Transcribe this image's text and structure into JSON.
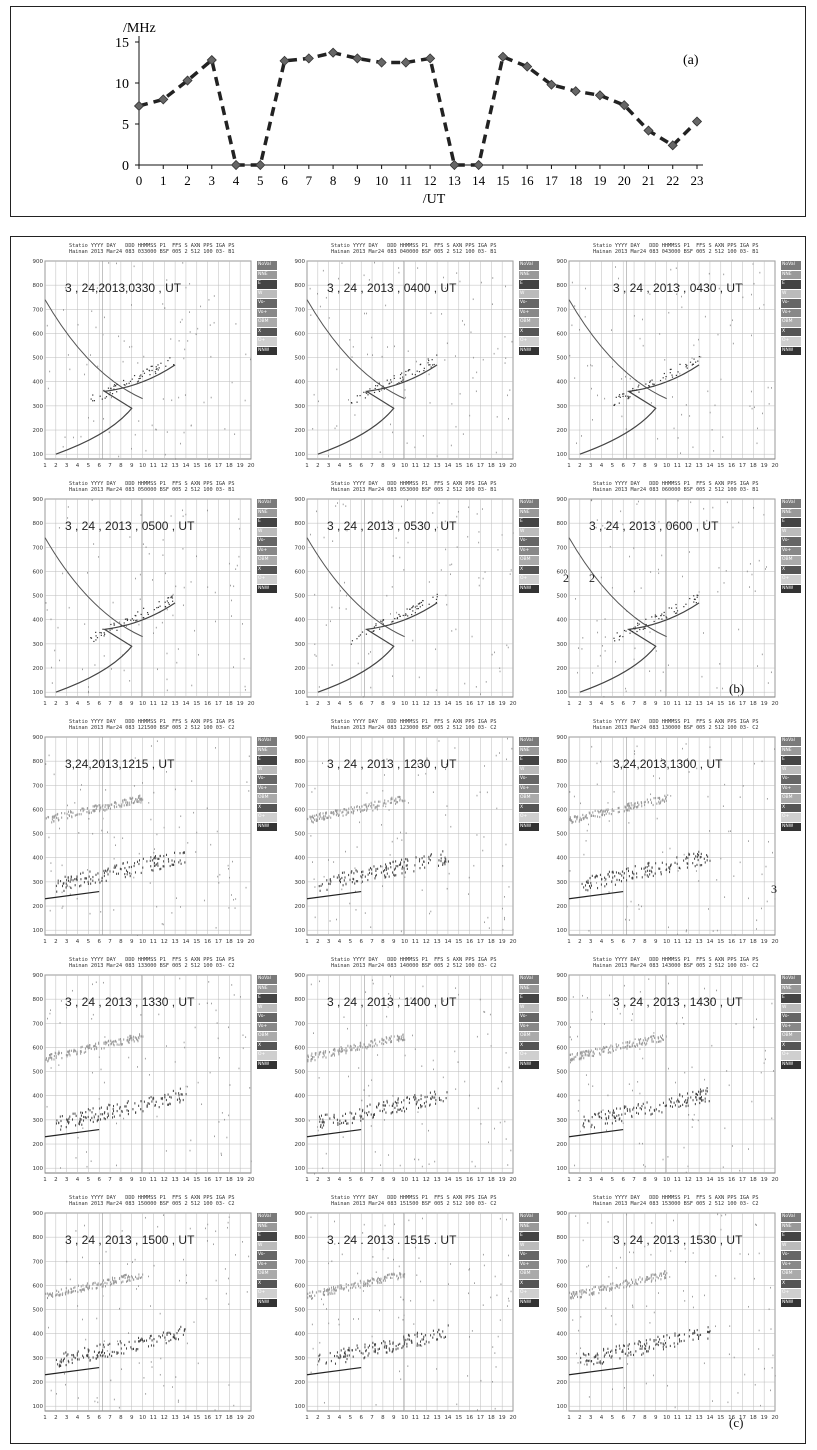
{
  "chart_data": [
    {
      "type": "line",
      "panel_label": "(a)",
      "ylabel": "/MHz",
      "xlabel": "/UT",
      "ylim": [
        0,
        15
      ],
      "xlim": [
        0,
        23
      ],
      "x": [
        0,
        1,
        2,
        3,
        4,
        5,
        6,
        7,
        8,
        9,
        10,
        11,
        12,
        13,
        14,
        15,
        16,
        17,
        18,
        19,
        20,
        21,
        22,
        23
      ],
      "yticks": [
        "0",
        "5",
        "10",
        "15"
      ],
      "xticks": [
        "0",
        "1",
        "2",
        "3",
        "4",
        "5",
        "6",
        "7",
        "8",
        "9",
        "10",
        "11",
        "12",
        "13",
        "14",
        "15",
        "16",
        "17",
        "18",
        "19",
        "20",
        "21",
        "22",
        "23"
      ],
      "series": [
        {
          "values": [
            7.2,
            8.0,
            10.3,
            12.8,
            0,
            0,
            12.7,
            13.0,
            13.7,
            13.0,
            12.5,
            12.5,
            13.0,
            0,
            0,
            13.2,
            12.0,
            9.8,
            9.0,
            8.5,
            7.3,
            4.2,
            2.4,
            5.3
          ]
        }
      ],
      "line_style": "dashed",
      "marker": "diamond",
      "grid": false
    },
    {
      "type": "scatter",
      "panel_labels": [
        "(b)",
        "(c)"
      ],
      "description_note": "",
      "yticks": [
        "100",
        "200",
        "300",
        "400",
        "500",
        "600",
        "700",
        "800",
        "900"
      ],
      "xticks": [
        "1",
        "2",
        "3",
        "4",
        "5",
        "6",
        "7",
        "8",
        "9",
        "10",
        "11",
        "12",
        "13",
        "14",
        "15",
        "16",
        "17",
        "18",
        "19",
        "20"
      ],
      "ylim": [
        80,
        900
      ],
      "xlim": [
        1,
        20
      ],
      "legend_items": [
        "NoVal",
        "NNE",
        "E",
        "W",
        "Vo-",
        "Vo+",
        "OBM",
        "X",
        "O+",
        "NNW"
      ],
      "header_line1": "Statio YYYY DAY   DDD HHMMSS P1  FFS S AXN PPS IGA PS",
      "ionograms": [
        {
          "stamp": "3 , 24,2013,0330 , UT",
          "header2": "Hainan 2013 Mar24 083 033000 BSF 005 2 512 100 03- B1"
        },
        {
          "stamp": "3 , 24 , 2013 , 0400 , UT",
          "header2": "Hainan 2013 Mar24 083 040000 BSF 005 2 512 100 03- B1"
        },
        {
          "stamp": "3 , 24 , 2013 , 0430 , UT",
          "header2": "Hainan 2013 Mar24 083 043000 BSF 005 2 512 100 03- B1"
        },
        {
          "stamp": "3 , 24 , 2013 , 0500 , UT",
          "header2": "Hainan 2013 Mar24 083 050000 BSF 005 2 512 100 03- B1"
        },
        {
          "stamp": "3 , 24 , 2013 , 0530 , UT",
          "header2": "Hainan 2013 Mar24 083 053000 BSF 005 2 512 100 03- B1"
        },
        {
          "stamp": "3 , 24 , 2013 , 0600 , UT",
          "header2": "Hainan 2013 Mar24 083 060000 BSF 005 2 512 100 03- B1"
        },
        {
          "stamp": "3,24,2013,1215 , UT",
          "header2": "Hainan 2013 Mar24 083 121500 BSF 005 2 512 100 03- C2"
        },
        {
          "stamp": "3 , 24 , 2013 , 1230 , UT",
          "header2": "Hainan 2013 Mar24 083 123000 BSF 005 2 512 100 03- C2"
        },
        {
          "stamp": "3,24,2013,1300 , UT",
          "header2": "Hainan 2013 Mar24 083 130000 BSF 005 2 512 100 03- C2"
        },
        {
          "stamp": "3 , 24 , 2013 , 1330 , UT",
          "header2": "Hainan 2013 Mar24 083 133000 BSF 005 2 512 100 03- C2"
        },
        {
          "stamp": "3 , 24 , 2013 , 1400 , UT",
          "header2": "Hainan 2013 Mar24 083 140000 BSF 005 2 512 100 03- C2"
        },
        {
          "stamp": "3 , 24 , 2013 , 1430 , UT",
          "header2": "Hainan 2013 Mar24 083 143000 BSF 005 2 512 100 03- C2"
        },
        {
          "stamp": "3 , 24 , 2013 , 1500 , UT",
          "header2": "Hainan 2013 Mar24 083 150000 BSF 005 2 512 100 03- C2"
        },
        {
          "stamp": "3 . 24 . 2013 . 1515 . UT",
          "header2": "Hainan 2013 Mar24 083 151500 BSF 005 2 512 100 03- C2"
        },
        {
          "stamp": "3 , 24 , 2013 , 1530 , UT",
          "header2": "Hainan 2013 Mar24 083 153000 BSF 005 2 512 100 03- C2"
        }
      ],
      "stray_text": [
        "2",
        "2",
        "3"
      ]
    }
  ]
}
